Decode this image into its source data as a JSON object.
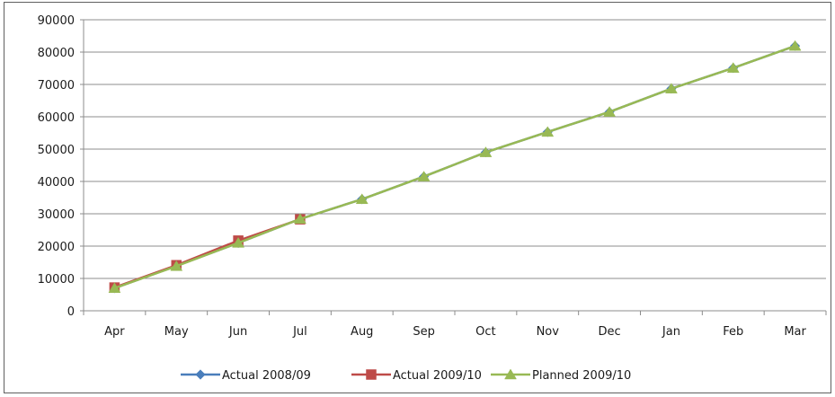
{
  "chart_data": {
    "type": "line",
    "categories": [
      "Apr",
      "May",
      "Jun",
      "Jul",
      "Aug",
      "Sep",
      "Oct",
      "Nov",
      "Dec",
      "Jan",
      "Feb",
      "Mar"
    ],
    "series": [
      {
        "name": "Actual 2008/09",
        "color": "#4a7ebb",
        "marker": "diamond",
        "values": [
          7000,
          13900,
          21000,
          28400,
          34500,
          41500,
          49000,
          55300,
          61500,
          68700,
          75100,
          81900
        ]
      },
      {
        "name": "Actual 2009/10",
        "color": "#be4b48",
        "marker": "square",
        "values": [
          7200,
          14100,
          21700,
          28300,
          null,
          null,
          null,
          null,
          null,
          null,
          null,
          null
        ]
      },
      {
        "name": "Planned 2009/10",
        "color": "#98b954",
        "marker": "triangle",
        "values": [
          7000,
          13800,
          21000,
          28400,
          34500,
          41500,
          49000,
          55300,
          61500,
          68700,
          75100,
          81900
        ]
      }
    ],
    "ylim": [
      0,
      90000
    ],
    "yticks": [
      0,
      10000,
      20000,
      30000,
      40000,
      50000,
      60000,
      70000,
      80000,
      90000
    ],
    "grid": true,
    "legend_position": "bottom",
    "title": "",
    "xlabel": "",
    "ylabel": ""
  }
}
